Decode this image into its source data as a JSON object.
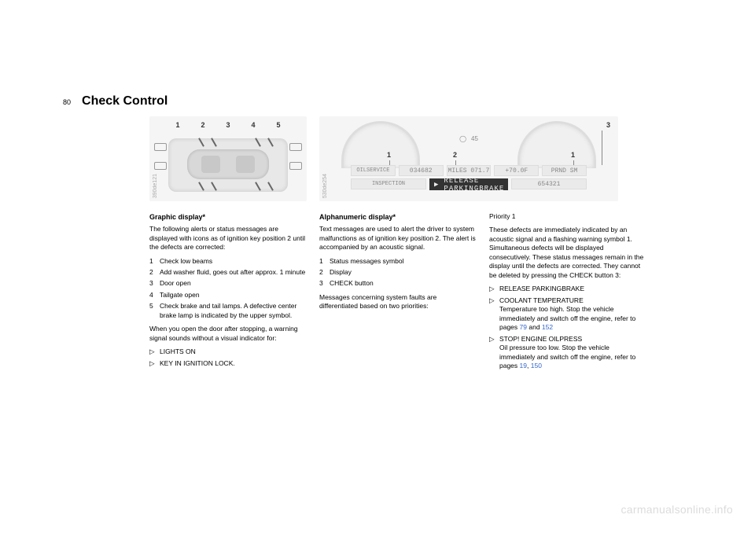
{
  "page_number": "80",
  "title": "Check Control",
  "image1": {
    "ref": "390de121",
    "labels": [
      "1",
      "2",
      "3",
      "4",
      "5"
    ]
  },
  "image2": {
    "ref": "530de254",
    "labels": {
      "a": "1",
      "b": "2",
      "c": "1",
      "d": "3"
    },
    "center_badge": "45",
    "odometer": "034682",
    "trip": "MILES 071.7",
    "temp": "+70.0F",
    "gear_top": "PRND  SM",
    "gear_bottom": "654321",
    "left_seg_top": "OILSERVICE",
    "left_seg_bot": "INSPECTION",
    "message": "RELEASE PARKINGBRAKE"
  },
  "col1": {
    "heading": "Graphic display*",
    "intro": "The following alerts or status messages are displayed with icons as of ignition key position 2 until the defects are corrected:",
    "items": [
      "Check low beams",
      "Add washer fluid, goes out after approx. 1 minute",
      "Door open",
      "Tailgate open",
      "Check brake and tail lamps. A defective center brake lamp is indicated by the upper symbol."
    ],
    "post": "When you open the door after stopping, a warning signal sounds without a visual indicator for:",
    "bullets": [
      "LIGHTS ON",
      "KEY IN IGNITION LOCK."
    ]
  },
  "col2": {
    "heading": "Alphanumeric display*",
    "intro": "Text messages are used to alert the driver to system malfunctions as of ignition key position 2. The alert is accompanied by an acoustic signal.",
    "items": [
      "Status messages symbol",
      "Display",
      "CHECK button"
    ],
    "post": "Messages concerning system faults are differentiated based on two priorities:"
  },
  "col3": {
    "priority": "Priority 1",
    "intro": "These defects are immediately indicated by an acoustic signal and a flashing warning symbol 1. Simultaneous defects will be displayed consecutively. These status messages remain in the display until the defects are corrected. They cannot be deleted by pressing the CHECK button 3:",
    "b1": "RELEASE PARKINGBRAKE",
    "b2_label": "COOLANT TEMPERATURE",
    "b2_text": "Temperature too high. Stop the vehicle immediately and switch off the engine, refer to pages ",
    "b2_link1": "79",
    "b2_and": " and ",
    "b2_link2": "152",
    "b3_label": "STOP! ENGINE OILPRESS",
    "b3_text": "Oil pressure too low. Stop the vehicle immediately and switch off the engine, refer to pages ",
    "b3_link1": "19",
    "b3_sep": ", ",
    "b3_link2": "150"
  },
  "watermark": "carmanualsonline.info"
}
